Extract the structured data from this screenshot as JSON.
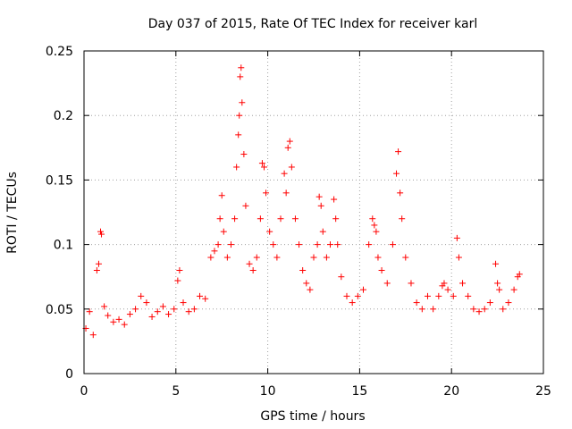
{
  "chart_data": {
    "type": "scatter",
    "title": "Day 037 of 2015, Rate Of TEC Index for receiver karl",
    "xlabel": "GPS time / hours",
    "ylabel": "ROTI / TECUs",
    "xlim": [
      0,
      25
    ],
    "ylim": [
      0,
      0.25
    ],
    "x_ticks": [
      0,
      5,
      10,
      15,
      20,
      25
    ],
    "x_tick_labels": [
      "0",
      "5",
      "10",
      "15",
      "20",
      "25"
    ],
    "y_ticks": [
      0,
      0.05,
      0.1,
      0.15,
      0.2,
      0.25
    ],
    "y_tick_labels": [
      "0",
      "0.05",
      "0.1",
      "0.15",
      "0.2",
      "0.25"
    ],
    "grid": true,
    "marker": "+",
    "color": "#ff0000",
    "series": [
      {
        "name": "ROTI",
        "x": [
          0.1,
          0.3,
          0.5,
          0.7,
          0.8,
          0.9,
          0.95,
          1.1,
          1.3,
          1.6,
          1.9,
          2.2,
          2.5,
          2.8,
          3.1,
          3.4,
          3.7,
          4.0,
          4.3,
          4.6,
          4.9,
          5.1,
          5.2,
          5.4,
          5.7,
          6.0,
          6.3,
          6.6,
          6.9,
          7.1,
          7.3,
          7.4,
          7.5,
          7.6,
          7.8,
          8.0,
          8.2,
          8.3,
          8.4,
          8.45,
          8.5,
          8.55,
          8.6,
          8.7,
          8.8,
          9.0,
          9.2,
          9.4,
          9.6,
          9.7,
          9.8,
          9.9,
          10.1,
          10.3,
          10.5,
          10.7,
          10.9,
          11.0,
          11.1,
          11.2,
          11.3,
          11.5,
          11.7,
          11.9,
          12.1,
          12.3,
          12.5,
          12.7,
          12.8,
          12.9,
          13.0,
          13.2,
          13.4,
          13.6,
          13.7,
          13.8,
          14.0,
          14.3,
          14.6,
          14.9,
          15.2,
          15.5,
          15.7,
          15.8,
          15.9,
          16.0,
          16.2,
          16.5,
          16.8,
          17.0,
          17.1,
          17.2,
          17.3,
          17.5,
          17.8,
          18.1,
          18.4,
          18.7,
          19.0,
          19.3,
          19.5,
          19.6,
          19.8,
          20.1,
          20.3,
          20.4,
          20.6,
          20.9,
          21.2,
          21.5,
          21.8,
          22.1,
          22.4,
          22.5,
          22.6,
          22.8,
          23.1,
          23.4,
          23.6,
          23.7
        ],
        "y": [
          0.035,
          0.048,
          0.03,
          0.08,
          0.085,
          0.11,
          0.108,
          0.052,
          0.045,
          0.04,
          0.042,
          0.038,
          0.046,
          0.05,
          0.06,
          0.055,
          0.044,
          0.048,
          0.052,
          0.046,
          0.05,
          0.072,
          0.08,
          0.055,
          0.048,
          0.05,
          0.06,
          0.058,
          0.09,
          0.095,
          0.1,
          0.12,
          0.138,
          0.11,
          0.09,
          0.1,
          0.12,
          0.16,
          0.185,
          0.2,
          0.23,
          0.237,
          0.21,
          0.17,
          0.13,
          0.085,
          0.08,
          0.09,
          0.12,
          0.163,
          0.16,
          0.14,
          0.11,
          0.1,
          0.09,
          0.12,
          0.155,
          0.14,
          0.175,
          0.18,
          0.16,
          0.12,
          0.1,
          0.08,
          0.07,
          0.065,
          0.09,
          0.1,
          0.137,
          0.13,
          0.11,
          0.09,
          0.1,
          0.135,
          0.12,
          0.1,
          0.075,
          0.06,
          0.055,
          0.06,
          0.065,
          0.1,
          0.12,
          0.115,
          0.11,
          0.09,
          0.08,
          0.07,
          0.1,
          0.155,
          0.172,
          0.14,
          0.12,
          0.09,
          0.07,
          0.055,
          0.05,
          0.06,
          0.05,
          0.06,
          0.068,
          0.07,
          0.065,
          0.06,
          0.105,
          0.09,
          0.07,
          0.06,
          0.05,
          0.048,
          0.05,
          0.055,
          0.085,
          0.07,
          0.065,
          0.05,
          0.055,
          0.065,
          0.075,
          0.077
        ]
      }
    ]
  }
}
